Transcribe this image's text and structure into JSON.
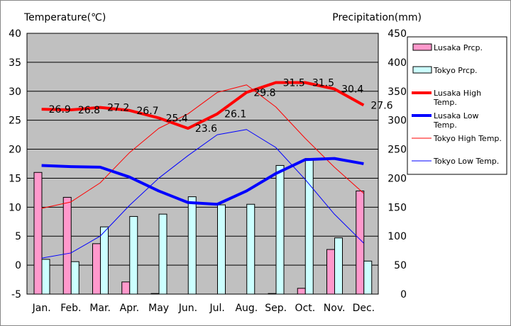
{
  "chart_data": {
    "type": "bar",
    "categories": [
      "Jan.",
      "Feb.",
      "Mar.",
      "Apr.",
      "May",
      "Jun.",
      "Jul.",
      "Aug.",
      "Sep.",
      "Oct.",
      "Nov.",
      "Dec."
    ],
    "left_axis": {
      "label": "Temperature(℃)",
      "ylim": [
        -5,
        40
      ],
      "ticks": [
        "-5",
        "0",
        "5",
        "10",
        "15",
        "20",
        "25",
        "30",
        "35",
        "40"
      ]
    },
    "right_axis": {
      "label": "Precipitation(mm)",
      "ylim": [
        0,
        450
      ],
      "ticks": [
        "0",
        "50",
        "100",
        "150",
        "200",
        "250",
        "300",
        "350",
        "400",
        "450"
      ]
    },
    "grid": true,
    "plot_background": "#c0c0c0",
    "legend_position": "right",
    "bar_series": [
      {
        "name": "Lusaka Prcp.",
        "axis": "right",
        "color": "#ff99cc",
        "values": [
          210,
          167,
          87,
          21,
          1,
          0,
          0,
          0,
          1,
          10,
          77,
          178
        ]
      },
      {
        "name": "Tokyo Prcp.",
        "axis": "right",
        "color": "#ccffff",
        "values": [
          60,
          56,
          116,
          134,
          138,
          168,
          154,
          155,
          222,
          234,
          97,
          57
        ]
      }
    ],
    "line_series": [
      {
        "name": "Lusaka High Temp.",
        "axis": "left",
        "color": "#ff0000",
        "width": 4,
        "values": [
          26.9,
          26.8,
          27.2,
          26.7,
          25.4,
          23.6,
          26.1,
          29.8,
          31.5,
          31.5,
          30.4,
          27.6
        ],
        "labels": [
          "26.9",
          "26.8",
          "27.2",
          "26.7",
          "25.4",
          "23.6",
          "26.1",
          "29.8",
          "31.5",
          "31.5",
          "30.4",
          "27.6"
        ]
      },
      {
        "name": "Lusaka Low Temp.",
        "axis": "left",
        "color": "#0000ff",
        "width": 4,
        "values": [
          17.2,
          17.0,
          16.9,
          15.2,
          12.8,
          10.8,
          10.5,
          12.8,
          15.8,
          18.2,
          18.4,
          17.5
        ]
      },
      {
        "name": "Tokyo High Temp.",
        "axis": "left",
        "color": "#ff0000",
        "width": 1,
        "values": [
          9.8,
          10.9,
          14.2,
          19.4,
          23.6,
          26.1,
          29.8,
          31.1,
          27.3,
          21.9,
          16.9,
          12.4
        ]
      },
      {
        "name": "Tokyo Low Temp.",
        "axis": "left",
        "color": "#0000ff",
        "width": 1,
        "values": [
          1.2,
          2.1,
          5.0,
          10.3,
          15.0,
          18.9,
          22.5,
          23.4,
          20.3,
          14.8,
          8.8,
          3.8
        ]
      }
    ],
    "legend": [
      {
        "label": "Lusaka Prcp.",
        "kind": "bar",
        "color": "#ff99cc"
      },
      {
        "label": "Tokyo Prcp.",
        "kind": "bar",
        "color": "#ccffff"
      },
      {
        "label": "Lusaka High Temp.",
        "kind": "line",
        "color": "#ff0000",
        "width": 4
      },
      {
        "label": "Lusaka Low Temp.",
        "kind": "line",
        "color": "#0000ff",
        "width": 4
      },
      {
        "label": "Tokyo High Temp.",
        "kind": "line",
        "color": "#ff0000",
        "width": 1
      },
      {
        "label": "Tokyo Low Temp.",
        "kind": "line",
        "color": "#0000ff",
        "width": 1
      }
    ]
  }
}
